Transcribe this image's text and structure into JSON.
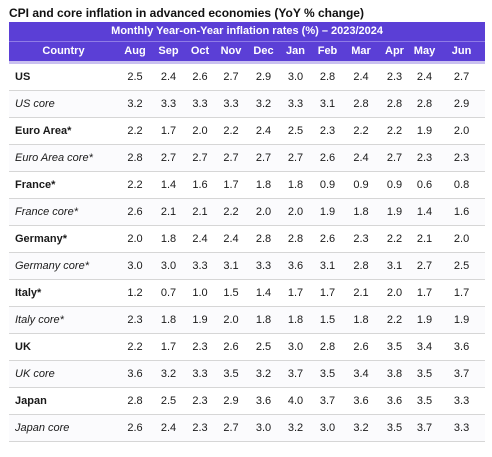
{
  "title": "CPI and core inflation in advanced economies (YoY % change)",
  "band_label": "Monthly Year-on-Year inflation rates (%) – 2023/2024",
  "columns": [
    "Country",
    "Aug",
    "Sep",
    "Oct",
    "Nov",
    "Dec",
    "Jan",
    "Feb",
    "Mar",
    "Apr",
    "May",
    "Jun"
  ],
  "colors": {
    "header_bg": "#5b3fd6",
    "header_text": "#ffffff"
  },
  "rows": [
    {
      "label": "US",
      "style": "bold",
      "values": [
        "2.5",
        "2.4",
        "2.6",
        "2.7",
        "2.9",
        "3.0",
        "2.8",
        "2.4",
        "2.3",
        "2.4",
        "2.7"
      ]
    },
    {
      "label": "US core",
      "style": "italic",
      "values": [
        "3.2",
        "3.3",
        "3.3",
        "3.3",
        "3.2",
        "3.3",
        "3.1",
        "2.8",
        "2.8",
        "2.8",
        "2.9"
      ]
    },
    {
      "label": "Euro Area*",
      "style": "bold",
      "values": [
        "2.2",
        "1.7",
        "2.0",
        "2.2",
        "2.4",
        "2.5",
        "2.3",
        "2.2",
        "2.2",
        "1.9",
        "2.0"
      ]
    },
    {
      "label": "Euro Area core*",
      "style": "italic",
      "values": [
        "2.8",
        "2.7",
        "2.7",
        "2.7",
        "2.7",
        "2.7",
        "2.6",
        "2.4",
        "2.7",
        "2.3",
        "2.3"
      ]
    },
    {
      "label": "France*",
      "style": "bold",
      "values": [
        "2.2",
        "1.4",
        "1.6",
        "1.7",
        "1.8",
        "1.8",
        "0.9",
        "0.9",
        "0.9",
        "0.6",
        "0.8"
      ]
    },
    {
      "label": "France core*",
      "style": "italic",
      "values": [
        "2.6",
        "2.1",
        "2.1",
        "2.2",
        "2.0",
        "2.0",
        "1.9",
        "1.8",
        "1.9",
        "1.4",
        "1.6"
      ]
    },
    {
      "label": "Germany*",
      "style": "bold",
      "values": [
        "2.0",
        "1.8",
        "2.4",
        "2.4",
        "2.8",
        "2.8",
        "2.6",
        "2.3",
        "2.2",
        "2.1",
        "2.0"
      ]
    },
    {
      "label": "Germany core*",
      "style": "italic",
      "values": [
        "3.0",
        "3.0",
        "3.3",
        "3.1",
        "3.3",
        "3.6",
        "3.1",
        "2.8",
        "3.1",
        "2.7",
        "2.5"
      ]
    },
    {
      "label": "Italy*",
      "style": "bold",
      "values": [
        "1.2",
        "0.7",
        "1.0",
        "1.5",
        "1.4",
        "1.7",
        "1.7",
        "2.1",
        "2.0",
        "1.7",
        "1.7"
      ]
    },
    {
      "label": "Italy core*",
      "style": "italic",
      "values": [
        "2.3",
        "1.8",
        "1.9",
        "2.0",
        "1.8",
        "1.8",
        "1.5",
        "1.8",
        "2.2",
        "1.9",
        "1.9"
      ]
    },
    {
      "label": "UK",
      "style": "bold",
      "values": [
        "2.2",
        "1.7",
        "2.3",
        "2.6",
        "2.5",
        "3.0",
        "2.8",
        "2.6",
        "3.5",
        "3.4",
        "3.6"
      ]
    },
    {
      "label": "UK core",
      "style": "italic",
      "values": [
        "3.6",
        "3.2",
        "3.3",
        "3.5",
        "3.2",
        "3.7",
        "3.5",
        "3.4",
        "3.8",
        "3.5",
        "3.7"
      ]
    },
    {
      "label": "Japan",
      "style": "bold",
      "values": [
        "2.8",
        "2.5",
        "2.3",
        "2.9",
        "3.6",
        "4.0",
        "3.7",
        "3.6",
        "3.6",
        "3.5",
        "3.3"
      ]
    },
    {
      "label": "Japan core",
      "style": "italic",
      "values": [
        "2.6",
        "2.4",
        "2.3",
        "2.7",
        "3.0",
        "3.2",
        "3.0",
        "3.2",
        "3.5",
        "3.7",
        "3.3"
      ]
    }
  ]
}
